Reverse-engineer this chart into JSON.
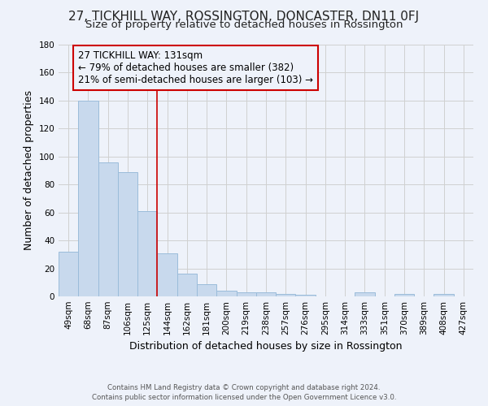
{
  "title": "27, TICKHILL WAY, ROSSINGTON, DONCASTER, DN11 0FJ",
  "subtitle": "Size of property relative to detached houses in Rossington",
  "xlabel": "Distribution of detached houses by size in Rossington",
  "ylabel": "Number of detached properties",
  "footer_line1": "Contains HM Land Registry data © Crown copyright and database right 2024.",
  "footer_line2": "Contains public sector information licensed under the Open Government Licence v3.0.",
  "bar_labels": [
    "49sqm",
    "68sqm",
    "87sqm",
    "106sqm",
    "125sqm",
    "144sqm",
    "162sqm",
    "181sqm",
    "200sqm",
    "219sqm",
    "238sqm",
    "257sqm",
    "276sqm",
    "295sqm",
    "314sqm",
    "333sqm",
    "351sqm",
    "370sqm",
    "389sqm",
    "408sqm",
    "427sqm"
  ],
  "bar_values": [
    32,
    140,
    96,
    89,
    61,
    31,
    16,
    9,
    4,
    3,
    3,
    2,
    1,
    0,
    0,
    3,
    0,
    2,
    0,
    2,
    0
  ],
  "bar_color": "#c8d9ed",
  "bar_edge_color": "#9bbcda",
  "background_color": "#eef2fa",
  "grid_color": "#d0d0d0",
  "annotation_box_edge": "#cc0000",
  "vline_color": "#cc0000",
  "vline_x": 4.5,
  "annotation_title": "27 TICKHILL WAY: 131sqm",
  "annotation_line1": "← 79% of detached houses are smaller (382)",
  "annotation_line2": "21% of semi-detached houses are larger (103) →",
  "ylim": [
    0,
    180
  ],
  "yticks": [
    0,
    20,
    40,
    60,
    80,
    100,
    120,
    140,
    160,
    180
  ],
  "title_fontsize": 11,
  "subtitle_fontsize": 9.5,
  "axis_label_fontsize": 9,
  "tick_fontsize": 7.5,
  "annotation_fontsize": 8.5
}
